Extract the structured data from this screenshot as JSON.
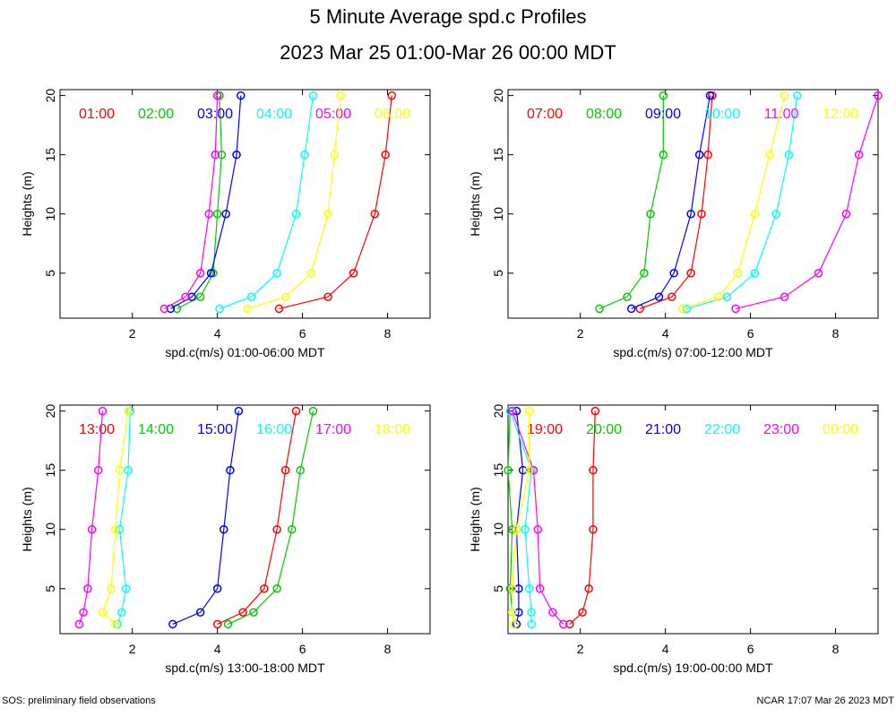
{
  "title": "5 Minute Average spd.c Profiles",
  "subtitle": "2023 Mar 25 01:00-Mar 26 00:00 MDT",
  "footer_left": "SOS: preliminary field observations",
  "footer_right": "NCAR 17:07 Mar 26 2023 MDT",
  "series_colors": [
    "#ff0000",
    "#00cc00",
    "#0000ff",
    "#00ffff",
    "#ff00ff",
    "#ffff00"
  ],
  "chart_data": [
    {
      "type": "line",
      "xlabel": "spd.c(m/s) 01:00-06:00 MDT",
      "ylabel": "Heights (m)",
      "xlim": [
        0.3,
        9.0
      ],
      "ylim": [
        1.2,
        20.5
      ],
      "xticks": [
        2,
        4,
        6,
        8
      ],
      "yticks": [
        5,
        10,
        15,
        20
      ],
      "heights": [
        2,
        3,
        5,
        10,
        15,
        20
      ],
      "series": [
        {
          "name": "01:00",
          "values": [
            5.45,
            6.6,
            7.2,
            7.7,
            7.95,
            8.1
          ]
        },
        {
          "name": "02:00",
          "values": [
            3.05,
            3.6,
            3.9,
            4.0,
            4.1,
            4.05
          ]
        },
        {
          "name": "03:00",
          "values": [
            2.9,
            3.4,
            3.85,
            4.2,
            4.45,
            4.55
          ]
        },
        {
          "name": "04:00",
          "values": [
            4.05,
            4.8,
            5.4,
            5.85,
            6.05,
            6.25
          ]
        },
        {
          "name": "05:00",
          "values": [
            2.75,
            3.25,
            3.6,
            3.8,
            3.95,
            4.0
          ]
        },
        {
          "name": "06:00",
          "values": [
            4.7,
            5.6,
            6.2,
            6.6,
            6.75,
            6.9
          ]
        }
      ]
    },
    {
      "type": "line",
      "xlabel": "spd.c(m/s) 07:00-12:00 MDT",
      "ylabel": "Heights (m)",
      "xlim": [
        0.3,
        9.0
      ],
      "ylim": [
        1.2,
        20.5
      ],
      "xticks": [
        2,
        4,
        6,
        8
      ],
      "yticks": [
        5,
        10,
        15,
        20
      ],
      "heights": [
        2,
        3,
        5,
        10,
        15,
        20
      ],
      "series": [
        {
          "name": "07:00",
          "values": [
            3.4,
            4.15,
            4.6,
            4.85,
            5.0,
            5.1
          ]
        },
        {
          "name": "08:00",
          "values": [
            2.45,
            3.1,
            3.5,
            3.65,
            3.95,
            3.95
          ]
        },
        {
          "name": "09:00",
          "values": [
            3.2,
            3.85,
            4.2,
            4.6,
            4.8,
            5.05
          ]
        },
        {
          "name": "10:00",
          "values": [
            4.5,
            5.45,
            6.1,
            6.6,
            6.9,
            7.1
          ]
        },
        {
          "name": "11:00",
          "values": [
            5.65,
            6.8,
            7.6,
            8.25,
            8.55,
            9.0
          ]
        },
        {
          "name": "12:00",
          "values": [
            4.4,
            5.25,
            5.7,
            6.1,
            6.45,
            6.8
          ]
        }
      ]
    },
    {
      "type": "line",
      "xlabel": "spd.c(m/s) 13:00-18:00 MDT",
      "ylabel": "Heights (m)",
      "xlim": [
        0.3,
        9.0
      ],
      "ylim": [
        1.2,
        20.5
      ],
      "xticks": [
        2,
        4,
        6,
        8
      ],
      "yticks": [
        5,
        10,
        15,
        20
      ],
      "heights": [
        2,
        3,
        5,
        10,
        15,
        20
      ],
      "series": [
        {
          "name": "13:00",
          "values": [
            4.0,
            4.6,
            5.1,
            5.4,
            5.6,
            5.85
          ]
        },
        {
          "name": "14:00",
          "values": [
            4.25,
            4.85,
            5.4,
            5.75,
            5.95,
            6.25
          ]
        },
        {
          "name": "15:00",
          "values": [
            2.95,
            3.6,
            4.0,
            4.15,
            4.3,
            4.5
          ]
        },
        {
          "name": "16:00",
          "values": [
            1.65,
            1.75,
            1.85,
            1.7,
            1.9,
            1.95
          ]
        },
        {
          "name": "17:00",
          "values": [
            0.75,
            0.85,
            0.95,
            1.05,
            1.2,
            1.3
          ]
        },
        {
          "name": "18:00",
          "values": [
            1.6,
            1.3,
            1.5,
            1.6,
            1.7,
            1.9
          ]
        }
      ]
    },
    {
      "type": "line",
      "xlabel": "spd.c(m/s) 19:00-00:00 MDT",
      "ylabel": "Heights (m)",
      "xlim": [
        0.3,
        9.0
      ],
      "ylim": [
        1.2,
        20.5
      ],
      "xticks": [
        2,
        4,
        6,
        8
      ],
      "yticks": [
        5,
        10,
        15,
        20
      ],
      "heights": [
        2,
        3,
        5,
        10,
        15,
        20
      ],
      "series": [
        {
          "name": "19:00",
          "values": [
            1.75,
            2.05,
            2.2,
            2.3,
            2.3,
            2.35
          ]
        },
        {
          "name": "20:00",
          "values": [
            0.45,
            0.4,
            0.35,
            0.4,
            0.3,
            0.35
          ]
        },
        {
          "name": "21:00",
          "values": [
            0.5,
            0.55,
            0.55,
            0.5,
            0.65,
            0.5
          ]
        },
        {
          "name": "22:00",
          "values": [
            0.85,
            0.85,
            0.8,
            0.7,
            0.85,
            0.35
          ]
        },
        {
          "name": "23:00",
          "values": [
            1.6,
            1.35,
            1.05,
            1.0,
            0.9,
            0.4
          ]
        },
        {
          "name": "00:00",
          "values": [
            0.45,
            0.4,
            0.4,
            0.5,
            0.8,
            0.8
          ]
        }
      ]
    }
  ]
}
